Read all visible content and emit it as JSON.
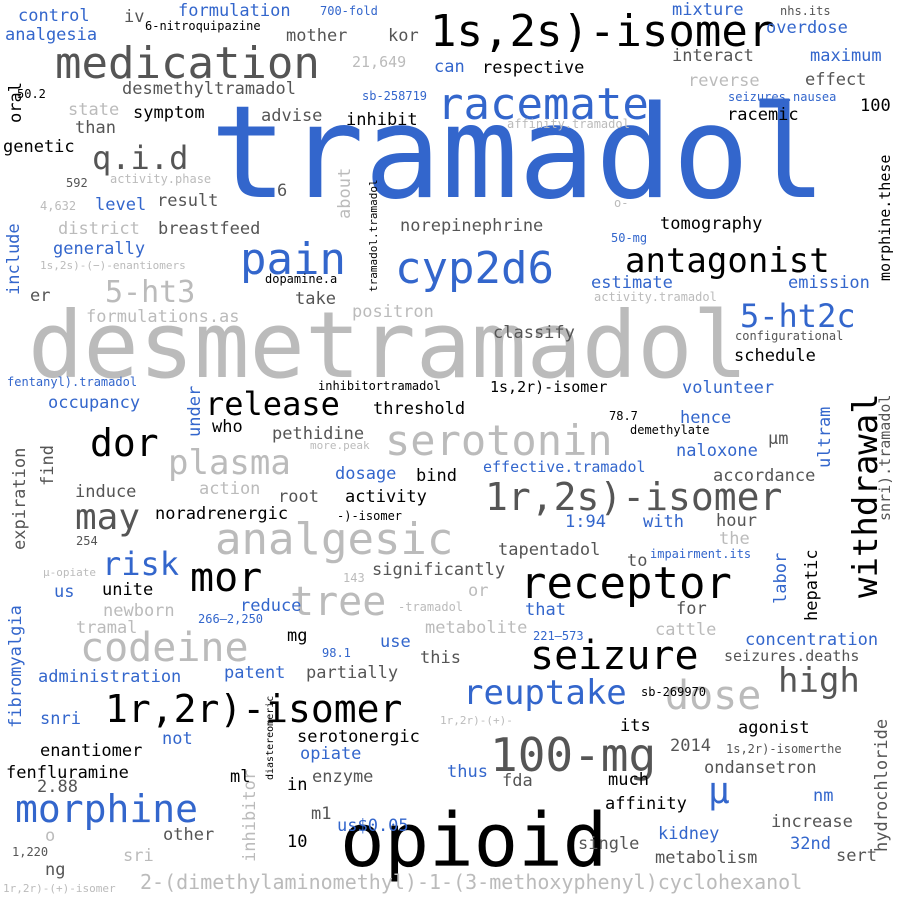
{
  "palette": {
    "background": "#ffffff",
    "blue": "#3366cc",
    "black": "#000000",
    "dark_gray": "#555555",
    "mid_gray": "#888888",
    "light_gray": "#bbbbbb"
  },
  "words": [
    {
      "text": "tramadol",
      "color": "blue",
      "emphasis": 1
    },
    {
      "text": "desmetramadol",
      "color": "light_gray",
      "emphasis": 2
    },
    {
      "text": "opioid",
      "color": "black",
      "emphasis": 3
    },
    {
      "text": "1s,2s)-isomer",
      "color": "black",
      "emphasis": 4
    },
    {
      "text": "medication",
      "color": "dark_gray",
      "emphasis": 4
    },
    {
      "text": "racemate",
      "color": "blue",
      "emphasis": 4
    },
    {
      "text": "analgesic",
      "color": "light_gray",
      "emphasis": 4
    },
    {
      "text": "receptor",
      "color": "black",
      "emphasis": 4
    },
    {
      "text": "withdrawal",
      "color": "black",
      "emphasis": 4,
      "vertical": true
    },
    {
      "text": "cyp2d6",
      "color": "blue",
      "emphasis": 4
    },
    {
      "text": "serotonin",
      "color": "light_gray",
      "emphasis": 4
    },
    {
      "text": "1r,2s)-isomer",
      "color": "dark_gray",
      "emphasis": 4
    },
    {
      "text": "1r,2r)-isomer",
      "color": "black",
      "emphasis": 4
    },
    {
      "text": "100-mg",
      "color": "dark_gray",
      "emphasis": 4
    },
    {
      "text": "morphine",
      "color": "blue",
      "emphasis": 4
    },
    {
      "text": "antagonist",
      "color": "black",
      "emphasis": 5
    },
    {
      "text": "pain",
      "color": "blue",
      "emphasis": 5
    },
    {
      "text": "release",
      "color": "black",
      "emphasis": 5
    },
    {
      "text": "plasma",
      "color": "light_gray",
      "emphasis": 5
    },
    {
      "text": "mor",
      "color": "black",
      "emphasis": 5
    },
    {
      "text": "tree",
      "color": "light_gray",
      "emphasis": 5
    },
    {
      "text": "codeine",
      "color": "light_gray",
      "emphasis": 5
    },
    {
      "text": "seizure",
      "color": "black",
      "emphasis": 5
    },
    {
      "text": "reuptake",
      "color": "blue",
      "emphasis": 5
    },
    {
      "text": "dose",
      "color": "light_gray",
      "emphasis": 5
    },
    {
      "text": "high",
      "color": "dark_gray",
      "emphasis": 5
    },
    {
      "text": "dor",
      "color": "black",
      "emphasis": 5
    },
    {
      "text": "may",
      "color": "dark_gray",
      "emphasis": 5
    },
    {
      "text": "q.i.d",
      "color": "dark_gray",
      "emphasis": 5
    },
    {
      "text": "5-ht3",
      "color": "light_gray",
      "emphasis": 5
    },
    {
      "text": "5-ht2c",
      "color": "blue",
      "emphasis": 5
    },
    {
      "text": "risk",
      "color": "blue",
      "emphasis": 5
    },
    {
      "text": "μ",
      "color": "blue",
      "emphasis": 5
    },
    {
      "text": "2-(dimethylaminomethyl)-1-(3-methoxyphenyl)cyclohexanol",
      "color": "light_gray",
      "emphasis": 7
    },
    {
      "text": "tomography",
      "color": "black",
      "emphasis": 7
    },
    {
      "text": "norepinephrine",
      "color": "dark_gray",
      "emphasis": 7
    },
    {
      "text": "emission",
      "color": "blue",
      "emphasis": 7
    },
    {
      "text": "classify",
      "color": "dark_gray",
      "emphasis": 7
    },
    {
      "text": "positron",
      "color": "light_gray",
      "emphasis": 7
    },
    {
      "text": "estimate",
      "color": "blue",
      "emphasis": 7
    },
    {
      "text": "schedule",
      "color": "black",
      "emphasis": 7
    },
    {
      "text": "threshold",
      "color": "black",
      "emphasis": 7
    },
    {
      "text": "volunteer",
      "color": "blue",
      "emphasis": 7
    },
    {
      "text": "hence",
      "color": "blue",
      "emphasis": 7
    },
    {
      "text": "naloxone",
      "color": "blue",
      "emphasis": 7
    },
    {
      "text": "accordance",
      "color": "dark_gray",
      "emphasis": 7
    },
    {
      "text": "pethidine",
      "color": "dark_gray",
      "emphasis": 7
    },
    {
      "text": "effective.tramadol",
      "color": "blue",
      "emphasis": 8
    },
    {
      "text": "activity",
      "color": "black",
      "emphasis": 7
    },
    {
      "text": "noradrenergic",
      "color": "black",
      "emphasis": 7
    },
    {
      "text": "root",
      "color": "dark_gray",
      "emphasis": 7
    },
    {
      "text": "tapentadol",
      "color": "dark_gray",
      "emphasis": 7
    },
    {
      "text": "significantly",
      "color": "dark_gray",
      "emphasis": 7
    },
    {
      "text": "concentration",
      "color": "blue",
      "emphasis": 7
    },
    {
      "text": "seizures.deaths",
      "color": "dark_gray",
      "emphasis": 7
    },
    {
      "text": "metabolite",
      "color": "light_gray",
      "emphasis": 7
    },
    {
      "text": "partially",
      "color": "dark_gray",
      "emphasis": 7
    },
    {
      "text": "administration",
      "color": "blue",
      "emphasis": 7
    },
    {
      "text": "patent",
      "color": "blue",
      "emphasis": 7
    },
    {
      "text": "enantiomer",
      "color": "black",
      "emphasis": 7
    },
    {
      "text": "serotonergic",
      "color": "black",
      "emphasis": 7
    },
    {
      "text": "fenfluramine",
      "color": "black",
      "emphasis": 7
    },
    {
      "text": "ondansetron",
      "color": "dark_gray",
      "emphasis": 7
    },
    {
      "text": "affinity",
      "color": "black",
      "emphasis": 7
    },
    {
      "text": "metabolism",
      "color": "dark_gray",
      "emphasis": 7
    },
    {
      "text": "increase",
      "color": "dark_gray",
      "emphasis": 7
    },
    {
      "text": "kidney",
      "color": "blue",
      "emphasis": 7
    },
    {
      "text": "single",
      "color": "dark_gray",
      "emphasis": 7
    },
    {
      "text": "sert",
      "color": "dark_gray",
      "emphasis": 7
    },
    {
      "text": "agonist",
      "color": "black",
      "emphasis": 7
    },
    {
      "text": "hepatic",
      "color": "black",
      "emphasis": 7,
      "vertical": true
    },
    {
      "text": "labor",
      "color": "blue",
      "emphasis": 7,
      "vertical": true
    },
    {
      "text": "hydrochloride",
      "color": "dark_gray",
      "emphasis": 7,
      "vertical": true
    },
    {
      "text": "fibromyalgia",
      "color": "blue",
      "emphasis": 7,
      "vertical": true
    },
    {
      "text": "expiration",
      "color": "dark_gray",
      "emphasis": 7,
      "vertical": true
    },
    {
      "text": "include",
      "color": "blue",
      "emphasis": 7,
      "vertical": true
    },
    {
      "text": "ultram",
      "color": "blue",
      "emphasis": 7,
      "vertical": true
    },
    {
      "text": "morphine.these",
      "color": "black",
      "emphasis": 7,
      "vertical": true
    },
    {
      "text": "snri).tramadol",
      "color": "dark_gray",
      "emphasis": 7,
      "vertical": true
    },
    {
      "text": "inhibitor",
      "color": "light_gray",
      "emphasis": 7,
      "vertical": true
    },
    {
      "text": "about",
      "color": "light_gray",
      "emphasis": 7,
      "vertical": true
    },
    {
      "text": "under",
      "color": "blue",
      "emphasis": 7,
      "vertical": true
    },
    {
      "text": "find",
      "color": "dark_gray",
      "emphasis": 7,
      "vertical": true
    },
    {
      "text": "oral",
      "color": "black",
      "emphasis": 7,
      "vertical": true
    },
    {
      "text": "control",
      "color": "blue",
      "emphasis": 7
    },
    {
      "text": "analgesia",
      "color": "blue",
      "emphasis": 7
    },
    {
      "text": "formulation",
      "color": "blue",
      "emphasis": 7
    },
    {
      "text": "mixture",
      "color": "blue",
      "emphasis": 7
    },
    {
      "text": "overdose",
      "color": "blue",
      "emphasis": 7
    },
    {
      "text": "mother",
      "color": "dark_gray",
      "emphasis": 7
    },
    {
      "text": "kor",
      "color": "dark_gray",
      "emphasis": 7
    },
    {
      "text": "interact",
      "color": "dark_gray",
      "emphasis": 7
    },
    {
      "text": "maximum",
      "color": "blue",
      "emphasis": 7
    },
    {
      "text": "respective",
      "color": "black",
      "emphasis": 7
    },
    {
      "text": "can",
      "color": "blue",
      "emphasis": 7
    },
    {
      "text": "effect",
      "color": "dark_gray",
      "emphasis": 7
    },
    {
      "text": "reverse",
      "color": "light_gray",
      "emphasis": 7
    },
    {
      "text": "desmethyltramadol",
      "color": "dark_gray",
      "emphasis": 7
    },
    {
      "text": "state",
      "color": "light_gray",
      "emphasis": 7
    },
    {
      "text": "symptom",
      "color": "black",
      "emphasis": 7
    },
    {
      "text": "advise",
      "color": "dark_gray",
      "emphasis": 7
    },
    {
      "text": "inhibit",
      "color": "black",
      "emphasis": 7
    },
    {
      "text": "racemic",
      "color": "black",
      "emphasis": 7
    },
    {
      "text": "than",
      "color": "dark_gray",
      "emphasis": 7
    },
    {
      "text": "genetic",
      "color": "black",
      "emphasis": 7
    },
    {
      "text": "level",
      "color": "blue",
      "emphasis": 7
    },
    {
      "text": "result",
      "color": "dark_gray",
      "emphasis": 7
    },
    {
      "text": "district",
      "color": "light_gray",
      "emphasis": 7
    },
    {
      "text": "breastfeed",
      "color": "dark_gray",
      "emphasis": 7
    },
    {
      "text": "generally",
      "color": "blue",
      "emphasis": 7
    },
    {
      "text": "take",
      "color": "dark_gray",
      "emphasis": 7
    },
    {
      "text": "formulations.as",
      "color": "light_gray",
      "emphasis": 7
    },
    {
      "text": "er",
      "color": "dark_gray",
      "emphasis": 7
    },
    {
      "text": "occupancy",
      "color": "blue",
      "emphasis": 7
    },
    {
      "text": "who",
      "color": "black",
      "emphasis": 7
    },
    {
      "text": "bind",
      "color": "black",
      "emphasis": 7
    },
    {
      "text": "dosage",
      "color": "blue",
      "emphasis": 7
    },
    {
      "text": "action",
      "color": "light_gray",
      "emphasis": 7
    },
    {
      "text": "induce",
      "color": "dark_gray",
      "emphasis": 7
    },
    {
      "text": "hour",
      "color": "dark_gray",
      "emphasis": 7
    },
    {
      "text": "the",
      "color": "light_gray",
      "emphasis": 7
    },
    {
      "text": "with",
      "color": "blue",
      "emphasis": 7
    },
    {
      "text": "1:94",
      "color": "blue",
      "emphasis": 7
    },
    {
      "text": "µm",
      "color": "dark_gray",
      "emphasis": 7
    },
    {
      "text": "to",
      "color": "dark_gray",
      "emphasis": 7
    },
    {
      "text": "us",
      "color": "blue",
      "emphasis": 7
    },
    {
      "text": "unite",
      "color": "black",
      "emphasis": 7
    },
    {
      "text": "or",
      "color": "light_gray",
      "emphasis": 7
    },
    {
      "text": "that",
      "color": "blue",
      "emphasis": 7
    },
    {
      "text": "for",
      "color": "dark_gray",
      "emphasis": 7
    },
    {
      "text": "newborn",
      "color": "light_gray",
      "emphasis": 7
    },
    {
      "text": "reduce",
      "color": "blue",
      "emphasis": 7
    },
    {
      "text": "tramal",
      "color": "light_gray",
      "emphasis": 7
    },
    {
      "text": "mg",
      "color": "black",
      "emphasis": 7
    },
    {
      "text": "use",
      "color": "blue",
      "emphasis": 7
    },
    {
      "text": "cattle",
      "color": "light_gray",
      "emphasis": 7
    },
    {
      "text": "this",
      "color": "dark_gray",
      "emphasis": 7
    },
    {
      "text": "its",
      "color": "black",
      "emphasis": 7
    },
    {
      "text": "snri",
      "color": "blue",
      "emphasis": 7
    },
    {
      "text": "not",
      "color": "blue",
      "emphasis": 7
    },
    {
      "text": "opiate",
      "color": "blue",
      "emphasis": 7
    },
    {
      "text": "enzyme",
      "color": "dark_gray",
      "emphasis": 7
    },
    {
      "text": "ml",
      "color": "black",
      "emphasis": 7
    },
    {
      "text": "in",
      "color": "black",
      "emphasis": 7
    },
    {
      "text": "thus",
      "color": "blue",
      "emphasis": 7
    },
    {
      "text": "fda",
      "color": "dark_gray",
      "emphasis": 7
    },
    {
      "text": "much",
      "color": "black",
      "emphasis": 7
    },
    {
      "text": "2014",
      "color": "dark_gray",
      "emphasis": 7
    },
    {
      "text": "nm",
      "color": "blue",
      "emphasis": 7
    },
    {
      "text": "2.88",
      "color": "dark_gray",
      "emphasis": 7
    },
    {
      "text": "us$0.05",
      "color": "blue",
      "emphasis": 7
    },
    {
      "text": "m1",
      "color": "dark_gray",
      "emphasis": 7
    },
    {
      "text": "10",
      "color": "black",
      "emphasis": 7
    },
    {
      "text": "other",
      "color": "dark_gray",
      "emphasis": 7
    },
    {
      "text": "sri",
      "color": "light_gray",
      "emphasis": 7
    },
    {
      "text": "o",
      "color": "light_gray",
      "emphasis": 7
    },
    {
      "text": "ng",
      "color": "dark_gray",
      "emphasis": 7
    },
    {
      "text": "32nd",
      "color": "blue",
      "emphasis": 7
    },
    {
      "text": "iv",
      "color": "dark_gray",
      "emphasis": 7
    },
    {
      "text": "6",
      "color": "dark_gray",
      "emphasis": 7
    },
    {
      "text": "100",
      "color": "black",
      "emphasis": 7
    },
    {
      "text": "6-nitroquipazine",
      "color": "black",
      "emphasis": 9
    },
    {
      "text": "700-fold",
      "color": "blue",
      "emphasis": 9
    },
    {
      "text": "nhs.its",
      "color": "dark_gray",
      "emphasis": 9
    },
    {
      "text": "21,649",
      "color": "light_gray",
      "emphasis": 9
    },
    {
      "text": "50.2",
      "color": "black",
      "emphasis": 9
    },
    {
      "text": "sb-258719",
      "color": "blue",
      "emphasis": 9
    },
    {
      "text": "seizures.nausea",
      "color": "blue",
      "emphasis": 9
    },
    {
      "text": "affinity.tramadol",
      "color": "light_gray",
      "emphasis": 9
    },
    {
      "text": "592",
      "color": "dark_gray",
      "emphasis": 9
    },
    {
      "text": "activity.phase",
      "color": "light_gray",
      "emphasis": 9
    },
    {
      "text": "tramadol.tramadol",
      "color": "black",
      "emphasis": 9,
      "vertical": true
    },
    {
      "text": "4,632",
      "color": "light_gray",
      "emphasis": 9
    },
    {
      "text": "o-",
      "color": "light_gray",
      "emphasis": 9
    },
    {
      "text": "50-mg",
      "color": "blue",
      "emphasis": 9
    },
    {
      "text": "1s,2s)-(−)-enantiomers",
      "color": "light_gray",
      "emphasis": 9
    },
    {
      "text": "dopamine.a",
      "color": "black",
      "emphasis": 9
    },
    {
      "text": "activity.tramadol",
      "color": "light_gray",
      "emphasis": 9
    },
    {
      "text": "configurational",
      "color": "dark_gray",
      "emphasis": 9
    },
    {
      "text": "fentanyl).tramadol",
      "color": "blue",
      "emphasis": 9
    },
    {
      "text": "inhibitortramadol",
      "color": "black",
      "emphasis": 9
    },
    {
      "text": "1s,2r)-isomer",
      "color": "black",
      "emphasis": 8
    },
    {
      "text": "78.7",
      "color": "black",
      "emphasis": 9
    },
    {
      "text": "demethylate",
      "color": "black",
      "emphasis": 9
    },
    {
      "text": "more.peak",
      "color": "light_gray",
      "emphasis": 9
    },
    {
      "text": "-)-isomer",
      "color": "black",
      "emphasis": 9
    },
    {
      "text": "254",
      "color": "dark_gray",
      "emphasis": 9
    },
    {
      "text": "μ-opiate",
      "color": "light_gray",
      "emphasis": 9
    },
    {
      "text": "impairment.its",
      "color": "blue",
      "emphasis": 9
    },
    {
      "text": "143",
      "color": "light_gray",
      "emphasis": 9
    },
    {
      "text": "266–2,250",
      "color": "blue",
      "emphasis": 9
    },
    {
      "text": "-tramadol",
      "color": "light_gray",
      "emphasis": 9
    },
    {
      "text": "221–573",
      "color": "blue",
      "emphasis": 9
    },
    {
      "text": "98.1",
      "color": "blue",
      "emphasis": 9
    },
    {
      "text": "1r,2r)-(+)-",
      "color": "light_gray",
      "emphasis": 9
    },
    {
      "text": "sb-269970",
      "color": "black",
      "emphasis": 9
    },
    {
      "text": "1s,2r)-isomerthe",
      "color": "dark_gray",
      "emphasis": 9
    },
    {
      "text": "diastereomeric",
      "color": "black",
      "emphasis": 9,
      "vertical": true
    },
    {
      "text": "1,220",
      "color": "dark_gray",
      "emphasis": 9
    },
    {
      "text": "1r,2r)-(+)-isomer",
      "color": "light_gray",
      "emphasis": 9
    }
  ]
}
